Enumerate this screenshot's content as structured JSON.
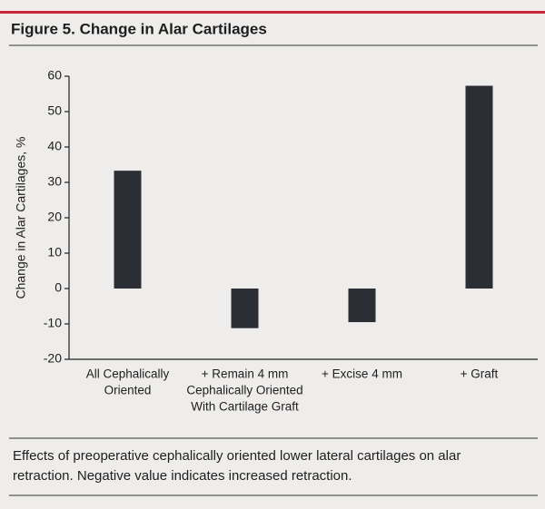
{
  "chart_data": {
    "type": "bar",
    "title": "Figure 5. Change in Alar Cartilages",
    "y_label": "Change in Alar Cartilages, %",
    "categories": [
      [
        "All Cephalically",
        "Oriented"
      ],
      [
        "+ Remain 4 mm",
        "Cephalically Oriented",
        "With Cartilage Graft"
      ],
      [
        "+ Excise 4 mm"
      ],
      [
        "+ Graft"
      ]
    ],
    "values": [
      33.3,
      -11.2,
      -9.5,
      57.3
    ],
    "color": "#2b2e35",
    "ylim": [
      -20,
      60
    ],
    "yticks": [
      -20,
      -10,
      0,
      10,
      20,
      30,
      40,
      50,
      60
    ],
    "caption": [
      "Effects of preoperative cephalically oriented lower lateral cartilages on alar",
      "retraction. Negative value indicates increased retraction."
    ]
  }
}
